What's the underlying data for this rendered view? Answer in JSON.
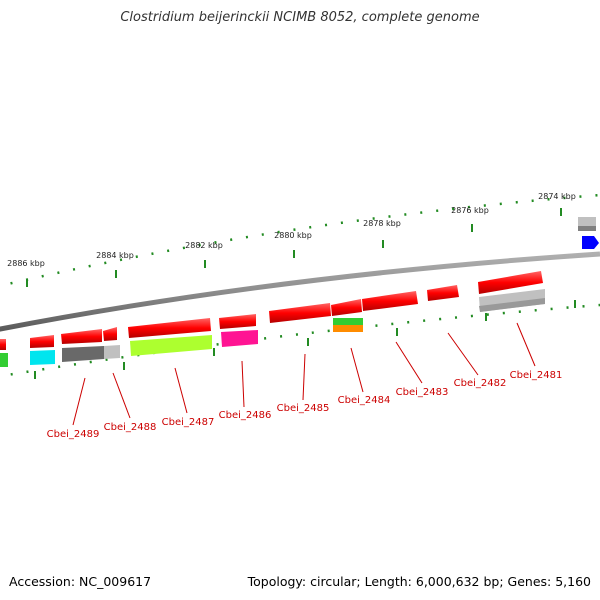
{
  "title": "Clostridium beijerinckii NCIMB 8052, complete genome",
  "footer": {
    "accession": "Accession: NC_009617",
    "summary": "Topology: circular; Length: 6,000,632 bp; Genes: 5,160"
  },
  "scale_labels": [
    "2874 kbp",
    "2876 kbp",
    "2878 kbp",
    "2880 kbp",
    "2882 kbp",
    "2884 kbp",
    "2886 kbp"
  ],
  "gene_labels": [
    "Cbei_2481",
    "Cbei_2482",
    "Cbei_2483",
    "Cbei_2484",
    "Cbei_2485",
    "Cbei_2486",
    "Cbei_2487",
    "Cbei_2488",
    "Cbei_2489"
  ],
  "colors": {
    "cds": "#ff0000",
    "label": "#cc0000",
    "backbone": "#808080",
    "tick": "#228b22",
    "cyan": "#00e5ee",
    "green": "#32cd32",
    "yellow_green": "#adff2f",
    "magenta": "#ff1493",
    "orange": "#ff8c00",
    "dark_gray": "#696969",
    "light_gray": "#c0c0c0",
    "blue": "#0000ff"
  }
}
